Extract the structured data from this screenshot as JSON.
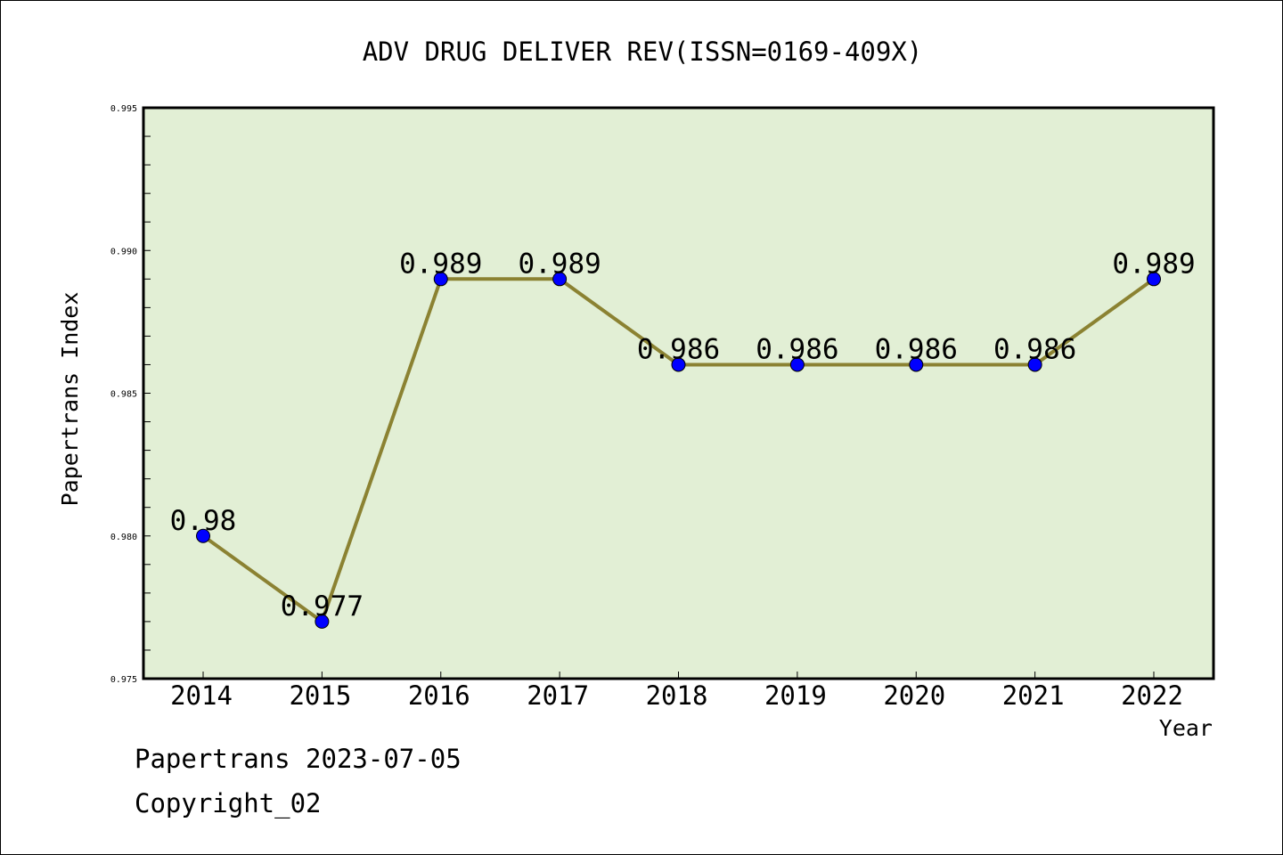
{
  "chart_data": {
    "type": "line",
    "title": "ADV DRUG DELIVER REV(ISSN=0169-409X)",
    "xlabel": "Year",
    "ylabel": "Papertrans Index",
    "categories": [
      "2014",
      "2015",
      "2016",
      "2017",
      "2018",
      "2019",
      "2020",
      "2021",
      "2022"
    ],
    "series": [
      {
        "values": [
          0.98,
          0.977,
          0.989,
          0.989,
          0.986,
          0.986,
          0.986,
          0.986,
          0.989
        ],
        "data_labels": [
          "0.98",
          "0.977",
          "0.989",
          "0.989",
          "0.986",
          "0.986",
          "0.986",
          "0.986",
          "0.989"
        ]
      }
    ],
    "ylim": [
      0.975,
      0.995
    ],
    "yticks": [
      "0.975",
      "0.980",
      "0.985",
      "0.990",
      "0.995"
    ],
    "grid": false,
    "colors": {
      "plot_background": "#e2efd5",
      "line": "#8b8232",
      "marker": "#0000ff"
    }
  },
  "footer": {
    "line1": "Papertrans 2023-07-05",
    "line2": "Copyright_02"
  }
}
